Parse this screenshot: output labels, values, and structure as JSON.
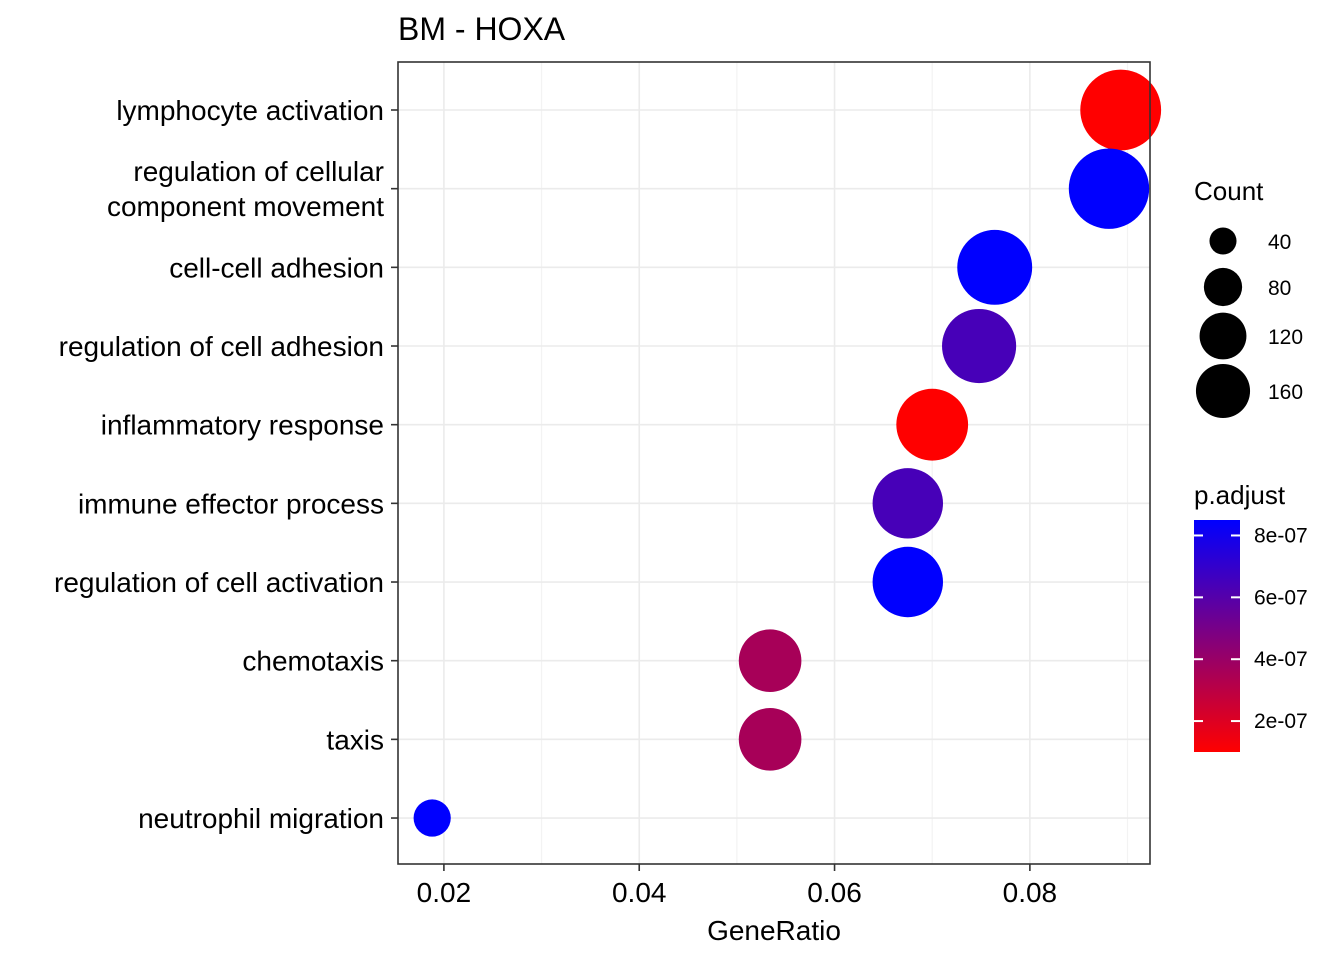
{
  "chart_data": {
    "type": "scatter",
    "title": "BM - HOXA",
    "xlabel": "GeneRatio",
    "ylabel": "",
    "xlim": [
      0.0153,
      0.0923
    ],
    "x_ticks": [
      0.02,
      0.04,
      0.06,
      0.08
    ],
    "x_tick_labels": [
      "0.02",
      "0.04",
      "0.06",
      "0.08"
    ],
    "grid": true,
    "categories": [
      "lymphocyte activation",
      "regulation of cellular\ncomponent movement",
      "cell-cell adhesion",
      "regulation of cell adhesion",
      "inflammatory response",
      "immune effector process",
      "regulation of cell activation",
      "chemotaxis",
      "taxis",
      "neutrophil migration"
    ],
    "points": [
      {
        "term": "lymphocyte activation",
        "gene_ratio": 0.0893,
        "count": 170,
        "p_adjust": 1e-07
      },
      {
        "term": "regulation of cellular\ncomponent movement",
        "gene_ratio": 0.0881,
        "count": 168,
        "p_adjust": 8.5e-07
      },
      {
        "term": "cell-cell adhesion",
        "gene_ratio": 0.0764,
        "count": 146,
        "p_adjust": 8.5e-07
      },
      {
        "term": "regulation of cell adhesion",
        "gene_ratio": 0.0748,
        "count": 143,
        "p_adjust": 6.4e-07
      },
      {
        "term": "inflammatory response",
        "gene_ratio": 0.07,
        "count": 134,
        "p_adjust": 1e-07
      },
      {
        "term": "immune effector process",
        "gene_ratio": 0.0675,
        "count": 129,
        "p_adjust": 6.4e-07
      },
      {
        "term": "regulation of cell activation",
        "gene_ratio": 0.0675,
        "count": 129,
        "p_adjust": 8.5e-07
      },
      {
        "term": "chemotaxis",
        "gene_ratio": 0.0534,
        "count": 102,
        "p_adjust": 3.6e-07
      },
      {
        "term": "taxis",
        "gene_ratio": 0.0534,
        "count": 102,
        "p_adjust": 3.6e-07
      },
      {
        "term": "neutrophil migration",
        "gene_ratio": 0.0188,
        "count": 36,
        "p_adjust": 8.5e-07
      }
    ],
    "legend_position": "right",
    "size_legend": {
      "title": "Count",
      "values": [
        40,
        80,
        120,
        160
      ],
      "labels": [
        "40",
        "80",
        "120",
        "160"
      ]
    },
    "color_legend": {
      "title": "p.adjust",
      "low_color": "#ff0000",
      "high_color": "#0000ff",
      "range": [
        1e-07,
        8.5e-07
      ],
      "ticks": [
        2e-07,
        4e-07,
        6e-07,
        8e-07
      ],
      "tick_labels": [
        "2e-07",
        "4e-07",
        "6e-07",
        "8e-07"
      ]
    },
    "colors": {
      "point_low": "#ff0000",
      "point_high": "#0000ff",
      "grid": "#ebebeb",
      "panel_border": "#333333"
    }
  }
}
